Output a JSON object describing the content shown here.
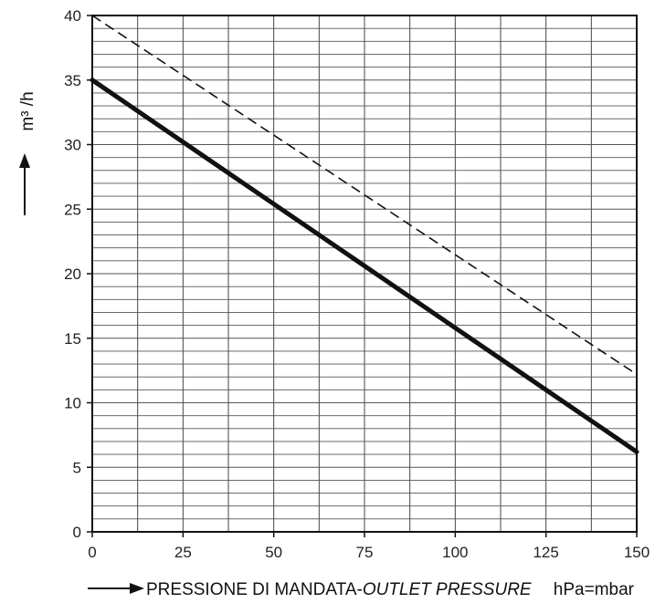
{
  "chart_data": {
    "type": "line",
    "title": "",
    "xlabel_part1": "PRESSIONE DI MANDATA-",
    "xlabel_part2": "OUTLET PRESSURE",
    "xunit": "hPa=mbar",
    "ylabel": "m³ /h",
    "xlim": [
      0,
      150
    ],
    "ylim": [
      0,
      40
    ],
    "x_ticks": [
      0,
      25,
      50,
      75,
      100,
      125,
      150
    ],
    "y_ticks": [
      0,
      5,
      10,
      15,
      20,
      25,
      30,
      35,
      40
    ],
    "grid": true,
    "series": [
      {
        "style": "solid-thick",
        "x": [
          0,
          150
        ],
        "values": [
          35,
          6.2
        ]
      },
      {
        "style": "dashed",
        "x": [
          0,
          150
        ],
        "values": [
          40,
          12.2
        ]
      }
    ]
  }
}
